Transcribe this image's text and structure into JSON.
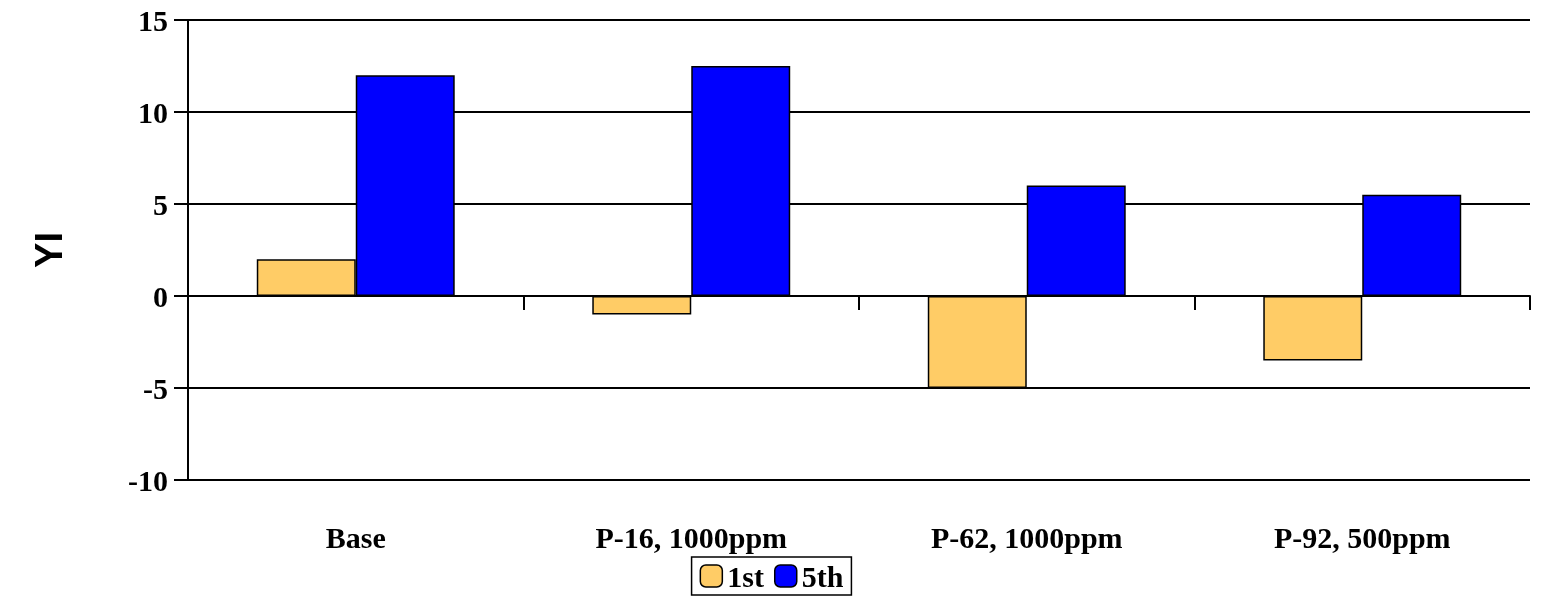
{
  "chart_data": {
    "type": "bar",
    "ylabel": "YI",
    "categories": [
      "Base",
      "P-16, 1000ppm",
      "P-62, 1000ppm",
      "P-92, 500ppm"
    ],
    "series": [
      {
        "name": "1st",
        "color": "#ffcc66",
        "values": [
          2,
          -1,
          -5,
          -3.5
        ]
      },
      {
        "name": "5th",
        "color": "#0000ff",
        "values": [
          12,
          12.5,
          6,
          5.5
        ]
      }
    ],
    "ylim": [
      -10,
      15
    ],
    "yticks": [
      -10,
      -5,
      0,
      5,
      10,
      15
    ],
    "grid": "y",
    "legend": "bottom"
  }
}
